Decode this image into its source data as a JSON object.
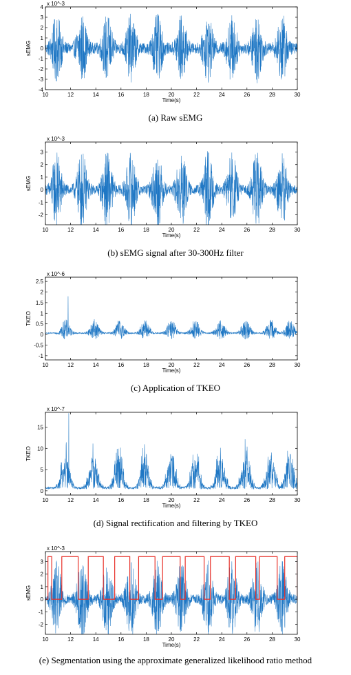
{
  "colors": {
    "signal": "#1f77c4",
    "segment": "#e8312a",
    "frame": "#000000"
  },
  "chart_data": [
    {
      "type": "line",
      "caption": "(a)  Raw sEMG",
      "xlabel": "Time(s)",
      "ylabel": "sEMG",
      "xlim": [
        10,
        30
      ],
      "ylim": [
        -4,
        4
      ],
      "xticks": [
        "10",
        "12",
        "14",
        "16",
        "18",
        "20",
        "22",
        "24",
        "26",
        "28",
        "30"
      ],
      "yticks": [
        "4",
        "3",
        "2",
        "1",
        "0",
        "-1",
        "-2",
        "-3",
        "-4"
      ],
      "yticks_values": [
        4,
        3,
        2,
        1,
        0,
        -1,
        -2,
        -3,
        -4
      ],
      "exponent": "x 10^-3",
      "series": [
        {
          "burst_centers": [
            10.9,
            12.9,
            14.9,
            16.8,
            18.9,
            20.8,
            22.9,
            24.8,
            26.8,
            28.8
          ],
          "burst_amplitude": 2.9,
          "baseline_noise": 0.5,
          "offset": 0
        }
      ]
    },
    {
      "type": "line",
      "caption": "(b)  sEMG signal after 30-300Hz filter",
      "xlabel": "Time(s)",
      "ylabel": "sEMG",
      "xlim": [
        10,
        30
      ],
      "ylim": [
        -2.8,
        3.8
      ],
      "xticks": [
        "10",
        "12",
        "14",
        "16",
        "18",
        "20",
        "22",
        "24",
        "26",
        "28",
        "30"
      ],
      "yticks": [
        "3",
        "2",
        "1",
        "0",
        "-1",
        "-2"
      ],
      "yticks_values": [
        3,
        2,
        1,
        0,
        -1,
        -2
      ],
      "exponent": "x 10^-3",
      "series": [
        {
          "burst_centers": [
            10.9,
            12.9,
            14.9,
            16.8,
            18.9,
            20.8,
            22.9,
            24.8,
            26.8,
            28.8
          ],
          "burst_amplitude": 2.8,
          "baseline_noise": 0.35,
          "offset": 0
        }
      ]
    },
    {
      "type": "line",
      "caption": "(c)  Application of TKEO",
      "xlabel": "Time(s)",
      "ylabel": "TKEO",
      "xlim": [
        10,
        30
      ],
      "ylim": [
        -1.2,
        2.7
      ],
      "xticks": [
        "10",
        "12",
        "14",
        "16",
        "18",
        "20",
        "22",
        "24",
        "26",
        "28",
        "30"
      ],
      "yticks": [
        "2.5",
        "2",
        "1.5",
        "1",
        "0.5",
        "0",
        "-0.5",
        "-1"
      ],
      "yticks_values": [
        2.5,
        2,
        1.5,
        1,
        0.5,
        0,
        -0.5,
        -1
      ],
      "exponent": "x 10^-6",
      "series": [
        {
          "burst_centers": [
            11.6,
            13.9,
            15.9,
            17.9,
            20.0,
            21.9,
            23.9,
            25.9,
            27.9,
            29.4
          ],
          "burst_amplitude": 1.0,
          "peak": [
            11.8,
            1.8
          ],
          "baseline_noise": 0.06,
          "offset": 0.05,
          "skew": 0.2
        }
      ]
    },
    {
      "type": "line",
      "caption": "(d)  Signal rectification and filtering by TKEO",
      "xlabel": "Time(s)",
      "ylabel": "TKEO",
      "xlim": [
        10,
        30
      ],
      "ylim": [
        -1,
        18.5
      ],
      "xticks": [
        "10",
        "12",
        "14",
        "16",
        "18",
        "20",
        "22",
        "24",
        "26",
        "28",
        "30"
      ],
      "yticks": [
        "15",
        "10",
        "5",
        "0"
      ],
      "yticks_values": [
        15,
        10,
        5,
        0
      ],
      "exponent": "x 10^-7",
      "series": [
        {
          "burst_centers": [
            11.6,
            13.8,
            15.8,
            17.9,
            20.0,
            21.9,
            23.9,
            25.9,
            27.9,
            29.4
          ],
          "burst_amplitude": 11.5,
          "peak": [
            11.85,
            18.3
          ],
          "baseline_noise": 0.6,
          "offset": 0.4,
          "rectified": true
        }
      ]
    },
    {
      "type": "line",
      "caption": "(e)  Segmentation using the approximate generalized likelihood ratio method",
      "xlabel": "Time(s)",
      "ylabel": "sEMG",
      "xlim": [
        10,
        30
      ],
      "ylim": [
        -2.8,
        3.8
      ],
      "xticks": [
        "10",
        "12",
        "14",
        "16",
        "18",
        "20",
        "22",
        "24",
        "26",
        "28",
        "30"
      ],
      "yticks": [
        "3",
        "2",
        "1",
        "0",
        "-1",
        "-2"
      ],
      "yticks_values": [
        3,
        2,
        1,
        0,
        -1,
        -2
      ],
      "exponent": "x 10^-3",
      "series": [
        {
          "burst_centers": [
            10.9,
            12.9,
            14.9,
            16.8,
            18.9,
            20.8,
            22.9,
            24.8,
            26.8,
            28.8
          ],
          "burst_amplitude": 2.8,
          "baseline_noise": 0.35,
          "offset": 0
        }
      ],
      "segments": {
        "high": 3.4,
        "low": 0,
        "intervals": [
          [
            10.2,
            10.5
          ],
          [
            11.3,
            12.6
          ],
          [
            13.4,
            14.6
          ],
          [
            15.5,
            16.7
          ],
          [
            17.4,
            18.7
          ],
          [
            19.3,
            20.7
          ],
          [
            21.1,
            22.6
          ],
          [
            23.1,
            24.6
          ],
          [
            25.1,
            26.7
          ],
          [
            27.0,
            28.4
          ],
          [
            29.0,
            30.0
          ]
        ]
      }
    }
  ]
}
